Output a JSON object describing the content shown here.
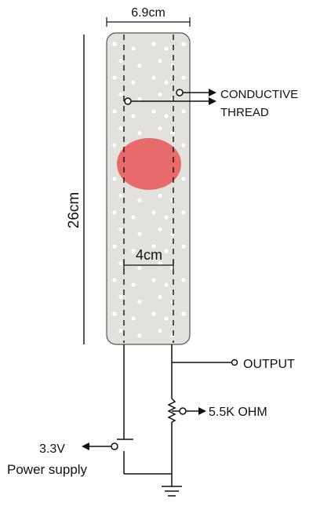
{
  "dimensions": {
    "width_label": "6.9cm",
    "length_label": "26cm",
    "spacing_label": "4cm"
  },
  "labels": {
    "conductive_line1": "CONDUCTIVE",
    "conductive_line2": "THREAD",
    "output": "OUTPUT",
    "resistor": "5.5K OHM",
    "voltage": "3.3V",
    "power_supply": "Power supply"
  },
  "colors": {
    "strip_fill": "#e3e1dc",
    "strip_stroke": "#555555",
    "pressure_spot": "#e86b6b",
    "wire": "#111111"
  }
}
